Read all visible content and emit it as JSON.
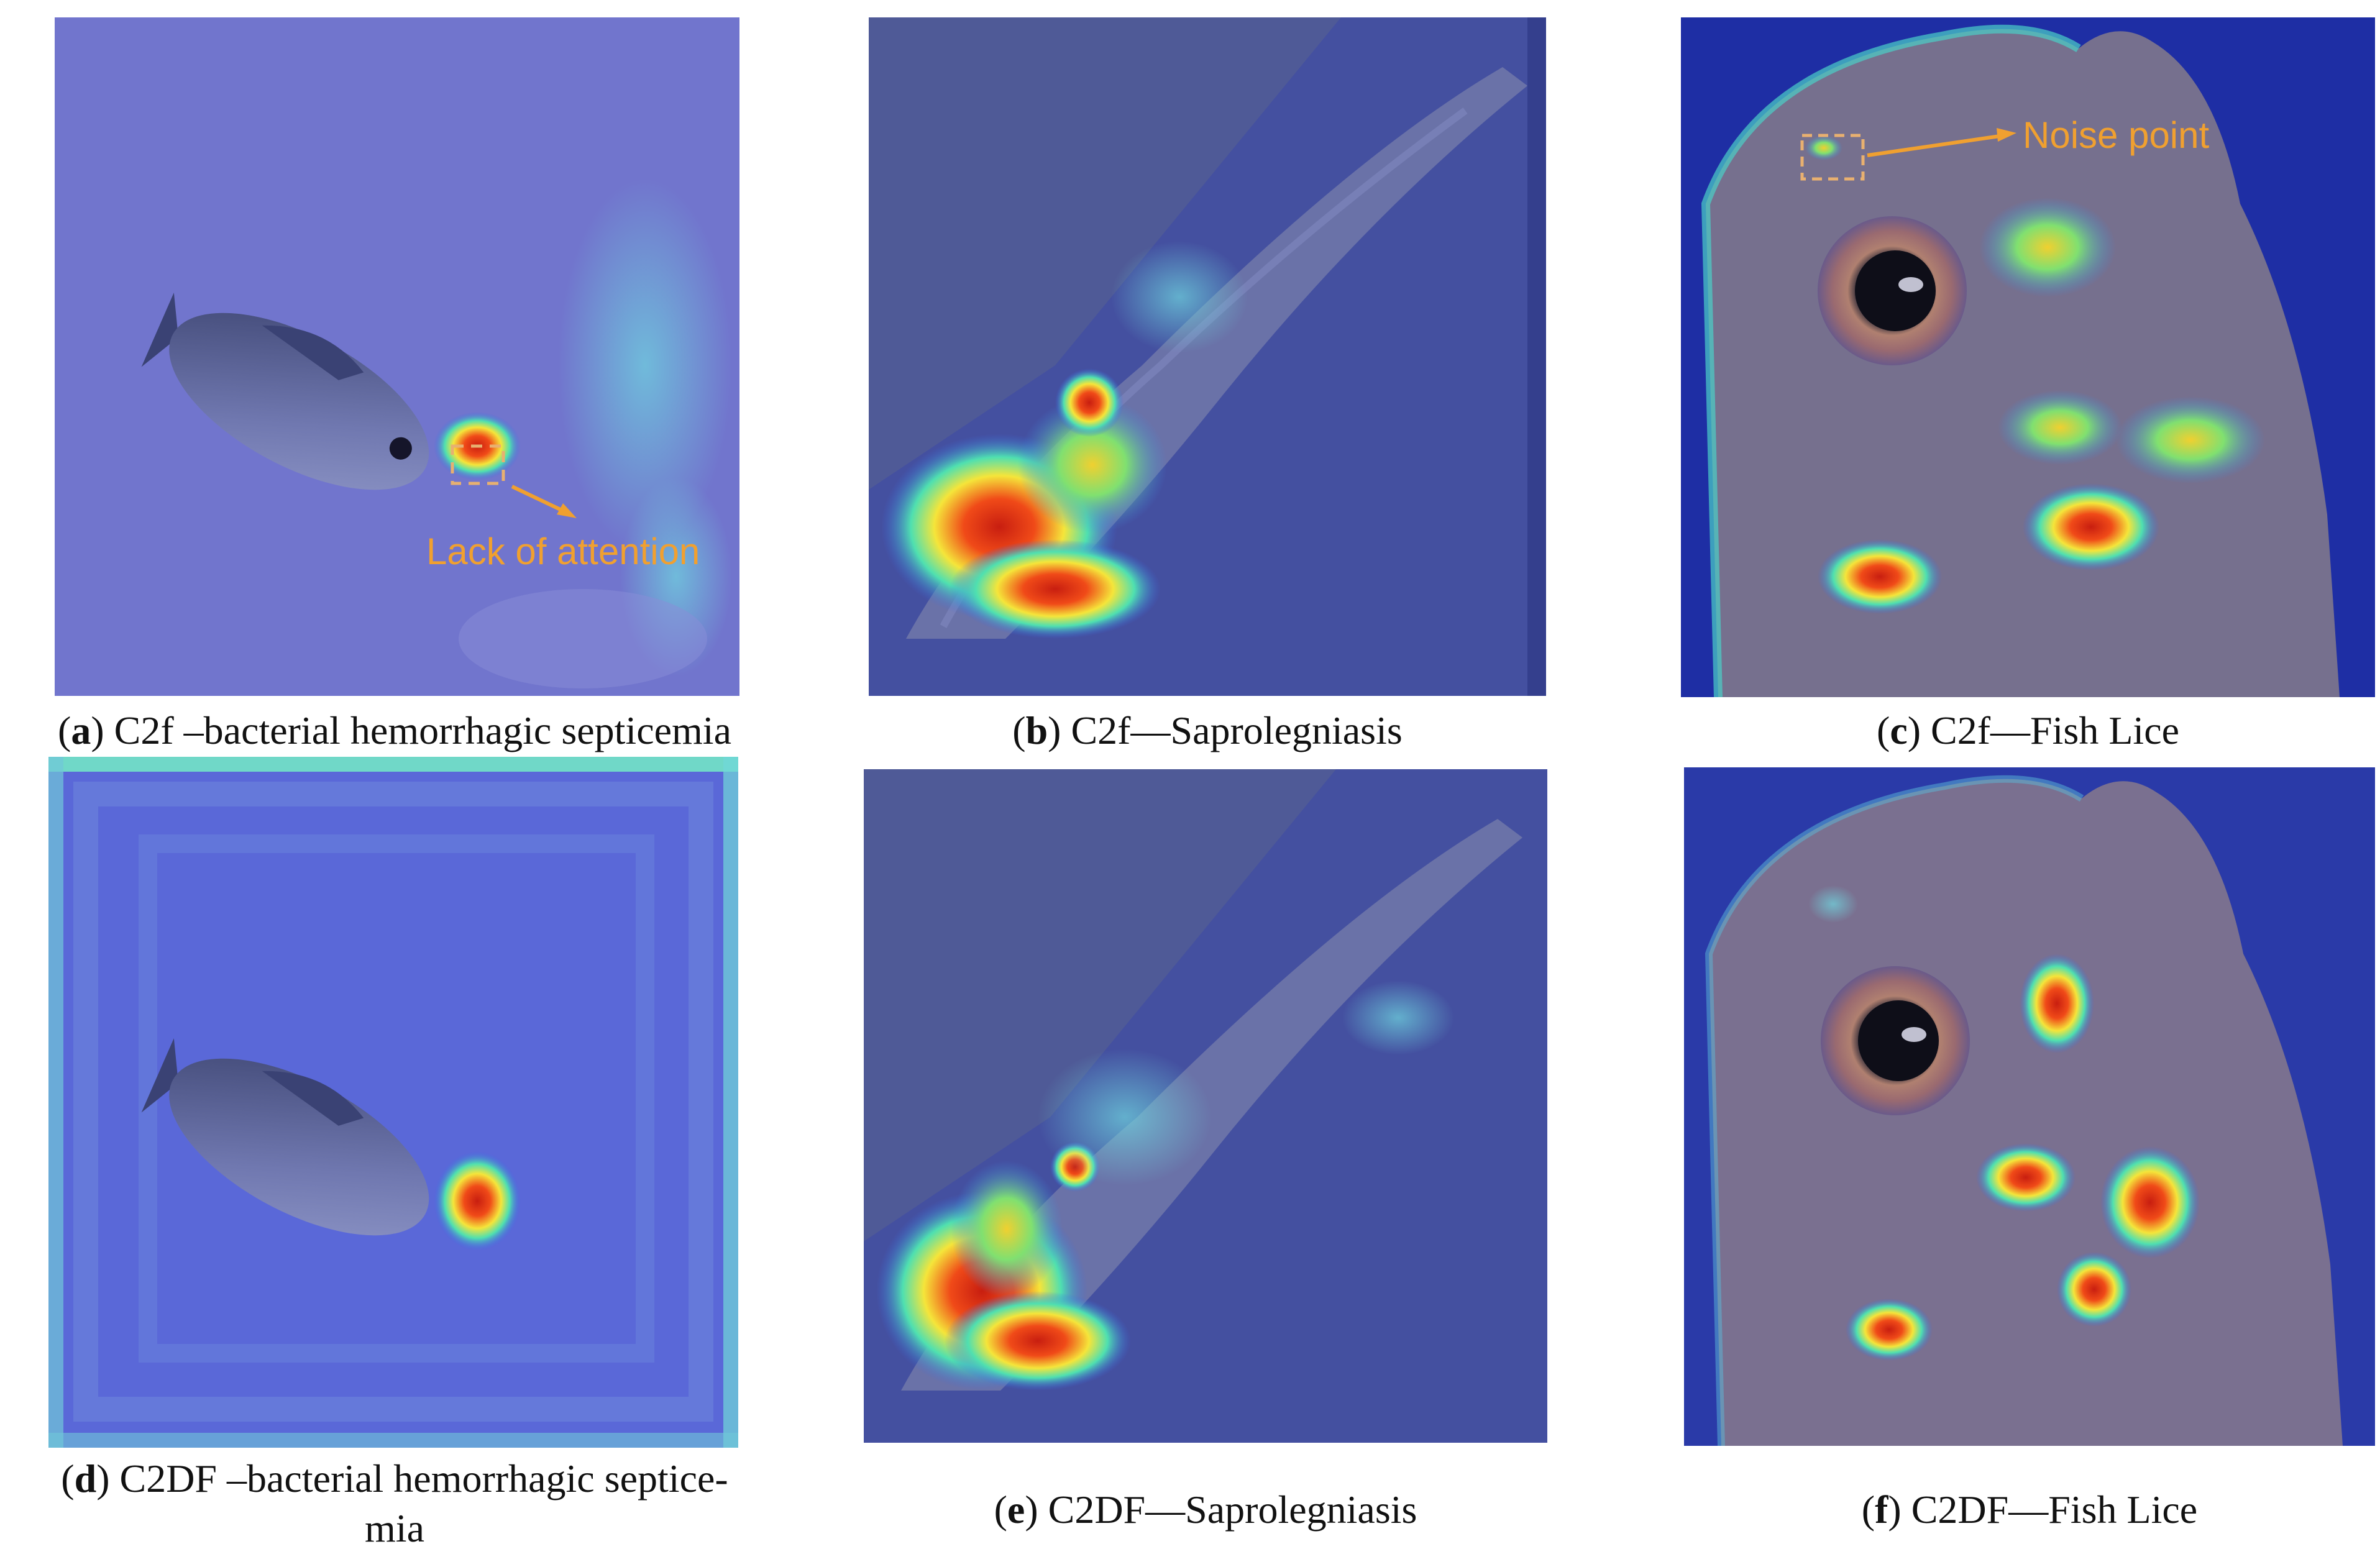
{
  "panels": [
    {
      "id": "a",
      "letter": "a",
      "caption": "C2f –bacterial hemorrhagic septicemia",
      "annotation": "Lack of attention"
    },
    {
      "id": "b",
      "letter": "b",
      "caption": "C2f—Saprolegniasis"
    },
    {
      "id": "c",
      "letter": "c",
      "caption": "C2f—Fish Lice",
      "annotation": "Noise point"
    },
    {
      "id": "d",
      "letter": "d",
      "caption_line1": "C2DF –bacterial hemorrhagic septice-",
      "caption_line2": "mia"
    },
    {
      "id": "e",
      "letter": "e",
      "caption": "C2DF—Saprolegniasis"
    },
    {
      "id": "f",
      "letter": "f",
      "caption": "C2DF—Fish Lice"
    }
  ],
  "colors": {
    "overlay_blue": "#5a63d8",
    "deep_blue": "#1c2c9c",
    "hot_red": "#e8341c",
    "hot_yellow": "#f5e53a",
    "annotation_orange": "#f0a030"
  }
}
